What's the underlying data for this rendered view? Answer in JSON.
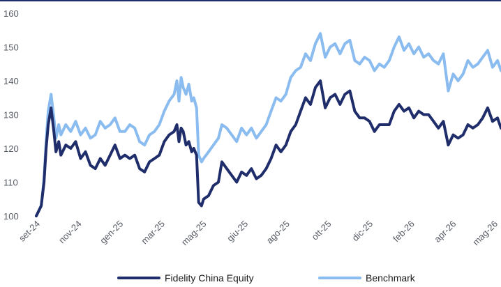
{
  "chart_data": {
    "type": "line",
    "title": "",
    "xlabel": "",
    "ylabel": "",
    "ylim": [
      100,
      160
    ],
    "y_ticks": [
      100,
      110,
      120,
      130,
      140,
      150,
      160
    ],
    "x_tick_labels": [
      "set-24",
      "nov-24",
      "gen-25",
      "mar-25",
      "mag-25",
      "giu-25",
      "ago-25",
      "ott-25",
      "dic-25",
      "feb-26",
      "apr-26",
      "mag-26"
    ],
    "grid": false,
    "legend_position": "bottom",
    "series": [
      {
        "name": "Fidelity China Equity",
        "color": "#1f2d6b",
        "points": [
          [
            "2024-09-13",
            100
          ],
          [
            "2024-09-20",
            103
          ],
          [
            "2024-09-24",
            110
          ],
          [
            "2024-09-27",
            120
          ],
          [
            "2024-09-30",
            127
          ],
          [
            "2024-10-04",
            132
          ],
          [
            "2024-10-08",
            125
          ],
          [
            "2024-10-11",
            119
          ],
          [
            "2024-10-15",
            122
          ],
          [
            "2024-10-18",
            118
          ],
          [
            "2024-10-25",
            121
          ],
          [
            "2024-11-01",
            120
          ],
          [
            "2024-11-08",
            122
          ],
          [
            "2024-11-15",
            117
          ],
          [
            "2024-11-22",
            119
          ],
          [
            "2024-11-29",
            115
          ],
          [
            "2024-12-06",
            114
          ],
          [
            "2024-12-13",
            117
          ],
          [
            "2024-12-20",
            115
          ],
          [
            "2024-12-27",
            118
          ],
          [
            "2025-01-03",
            121
          ],
          [
            "2025-01-10",
            117
          ],
          [
            "2025-01-17",
            118
          ],
          [
            "2025-01-24",
            117
          ],
          [
            "2025-01-31",
            118
          ],
          [
            "2025-02-07",
            114
          ],
          [
            "2025-02-14",
            113
          ],
          [
            "2025-02-21",
            116
          ],
          [
            "2025-02-28",
            117
          ],
          [
            "2025-03-07",
            118
          ],
          [
            "2025-03-14",
            122
          ],
          [
            "2025-03-21",
            124
          ],
          [
            "2025-03-28",
            125
          ],
          [
            "2025-04-01",
            127
          ],
          [
            "2025-04-04",
            122
          ],
          [
            "2025-04-07",
            126
          ],
          [
            "2025-04-10",
            125
          ],
          [
            "2025-04-14",
            121
          ],
          [
            "2025-04-18",
            122
          ],
          [
            "2025-04-22",
            119
          ],
          [
            "2025-04-25",
            120
          ],
          [
            "2025-04-29",
            118
          ],
          [
            "2025-05-02",
            104
          ],
          [
            "2025-05-06",
            103
          ],
          [
            "2025-05-09",
            105
          ],
          [
            "2025-05-16",
            106
          ],
          [
            "2025-05-23",
            109
          ],
          [
            "2025-05-30",
            110
          ],
          [
            "2025-06-04",
            116
          ],
          [
            "2025-06-11",
            114
          ],
          [
            "2025-06-18",
            112
          ],
          [
            "2025-06-25",
            110
          ],
          [
            "2025-07-02",
            113
          ],
          [
            "2025-07-09",
            112
          ],
          [
            "2025-07-16",
            114
          ],
          [
            "2025-07-23",
            111
          ],
          [
            "2025-07-30",
            112
          ],
          [
            "2025-08-06",
            114
          ],
          [
            "2025-08-13",
            117
          ],
          [
            "2025-08-20",
            121
          ],
          [
            "2025-08-27",
            119
          ],
          [
            "2025-09-03",
            121
          ],
          [
            "2025-09-10",
            125
          ],
          [
            "2025-09-17",
            127
          ],
          [
            "2025-09-24",
            131
          ],
          [
            "2025-10-01",
            135
          ],
          [
            "2025-10-08",
            133
          ],
          [
            "2025-10-15",
            138
          ],
          [
            "2025-10-22",
            140
          ],
          [
            "2025-10-29",
            132
          ],
          [
            "2025-11-05",
            135
          ],
          [
            "2025-11-12",
            136
          ],
          [
            "2025-11-19",
            133
          ],
          [
            "2025-11-26",
            136
          ],
          [
            "2025-12-03",
            137
          ],
          [
            "2025-12-10",
            131
          ],
          [
            "2025-12-17",
            129
          ],
          [
            "2025-12-24",
            129
          ],
          [
            "2025-12-31",
            128
          ],
          [
            "2026-01-07",
            125
          ],
          [
            "2026-01-14",
            127
          ],
          [
            "2026-01-21",
            127
          ],
          [
            "2026-01-28",
            127
          ],
          [
            "2026-02-04",
            131
          ],
          [
            "2026-02-11",
            133
          ],
          [
            "2026-02-18",
            131
          ],
          [
            "2026-02-25",
            132
          ],
          [
            "2026-03-04",
            129
          ],
          [
            "2026-03-11",
            131
          ],
          [
            "2026-03-18",
            130
          ],
          [
            "2026-03-25",
            130
          ],
          [
            "2026-04-01",
            128
          ],
          [
            "2026-04-08",
            126
          ],
          [
            "2026-04-15",
            128
          ],
          [
            "2026-04-22",
            121
          ],
          [
            "2026-04-29",
            124
          ],
          [
            "2026-05-06",
            123
          ],
          [
            "2026-05-13",
            124
          ],
          [
            "2026-05-20",
            127
          ],
          [
            "2026-05-27",
            126
          ],
          [
            "2026-06-03",
            127
          ],
          [
            "2026-06-10",
            129
          ],
          [
            "2026-06-17",
            132
          ],
          [
            "2026-06-24",
            128
          ],
          [
            "2026-07-01",
            129
          ],
          [
            "2026-07-06",
            126
          ]
        ]
      },
      {
        "name": "Benchmark",
        "color": "#8bbcf0",
        "points": [
          [
            "2024-09-13",
            100
          ],
          [
            "2024-09-20",
            103
          ],
          [
            "2024-09-24",
            111
          ],
          [
            "2024-09-27",
            122
          ],
          [
            "2024-09-30",
            131
          ],
          [
            "2024-10-04",
            136
          ],
          [
            "2024-10-08",
            129
          ],
          [
            "2024-10-11",
            123
          ],
          [
            "2024-10-15",
            127
          ],
          [
            "2024-10-18",
            124
          ],
          [
            "2024-10-25",
            127
          ],
          [
            "2024-11-01",
            125
          ],
          [
            "2024-11-08",
            128
          ],
          [
            "2024-11-15",
            124
          ],
          [
            "2024-11-22",
            126
          ],
          [
            "2024-11-29",
            123
          ],
          [
            "2024-12-06",
            124
          ],
          [
            "2024-12-13",
            128
          ],
          [
            "2024-12-20",
            126
          ],
          [
            "2024-12-27",
            127
          ],
          [
            "2025-01-03",
            129
          ],
          [
            "2025-01-10",
            125
          ],
          [
            "2025-01-17",
            125
          ],
          [
            "2025-01-24",
            127
          ],
          [
            "2025-01-31",
            126
          ],
          [
            "2025-02-07",
            122
          ],
          [
            "2025-02-14",
            121
          ],
          [
            "2025-02-21",
            124
          ],
          [
            "2025-02-28",
            125
          ],
          [
            "2025-03-07",
            127
          ],
          [
            "2025-03-14",
            131
          ],
          [
            "2025-03-21",
            134
          ],
          [
            "2025-03-28",
            136
          ],
          [
            "2025-04-01",
            140
          ],
          [
            "2025-04-04",
            134
          ],
          [
            "2025-04-07",
            141
          ],
          [
            "2025-04-10",
            138
          ],
          [
            "2025-04-14",
            136
          ],
          [
            "2025-04-18",
            139
          ],
          [
            "2025-04-22",
            134
          ],
          [
            "2025-04-25",
            135
          ],
          [
            "2025-04-29",
            132
          ],
          [
            "2025-05-02",
            118
          ],
          [
            "2025-05-06",
            116
          ],
          [
            "2025-05-09",
            117
          ],
          [
            "2025-05-16",
            119
          ],
          [
            "2025-05-23",
            121
          ],
          [
            "2025-05-30",
            123
          ],
          [
            "2025-06-04",
            127
          ],
          [
            "2025-06-11",
            126
          ],
          [
            "2025-06-18",
            124
          ],
          [
            "2025-06-25",
            122
          ],
          [
            "2025-07-02",
            126
          ],
          [
            "2025-07-09",
            124
          ],
          [
            "2025-07-16",
            126
          ],
          [
            "2025-07-23",
            123
          ],
          [
            "2025-07-30",
            125
          ],
          [
            "2025-08-06",
            127
          ],
          [
            "2025-08-13",
            131
          ],
          [
            "2025-08-20",
            135
          ],
          [
            "2025-08-27",
            134
          ],
          [
            "2025-09-03",
            136
          ],
          [
            "2025-09-10",
            141
          ],
          [
            "2025-09-17",
            143
          ],
          [
            "2025-09-24",
            144
          ],
          [
            "2025-10-01",
            148
          ],
          [
            "2025-10-08",
            146
          ],
          [
            "2025-10-15",
            151
          ],
          [
            "2025-10-22",
            154
          ],
          [
            "2025-10-29",
            147
          ],
          [
            "2025-11-05",
            150
          ],
          [
            "2025-11-12",
            151
          ],
          [
            "2025-11-19",
            148
          ],
          [
            "2025-11-26",
            151
          ],
          [
            "2025-12-03",
            152
          ],
          [
            "2025-12-10",
            146
          ],
          [
            "2025-12-17",
            145
          ],
          [
            "2025-12-24",
            147
          ],
          [
            "2025-12-31",
            146
          ],
          [
            "2026-01-07",
            143
          ],
          [
            "2026-01-14",
            145
          ],
          [
            "2026-01-21",
            144
          ],
          [
            "2026-01-28",
            146
          ],
          [
            "2026-02-04",
            150
          ],
          [
            "2026-02-11",
            153
          ],
          [
            "2026-02-18",
            149
          ],
          [
            "2026-02-25",
            151
          ],
          [
            "2026-03-04",
            148
          ],
          [
            "2026-03-11",
            150
          ],
          [
            "2026-03-18",
            147
          ],
          [
            "2026-03-25",
            148
          ],
          [
            "2026-04-01",
            146
          ],
          [
            "2026-04-08",
            145
          ],
          [
            "2026-04-15",
            148
          ],
          [
            "2026-04-22",
            137
          ],
          [
            "2026-04-29",
            142
          ],
          [
            "2026-05-06",
            140
          ],
          [
            "2026-05-13",
            142
          ],
          [
            "2026-05-20",
            146
          ],
          [
            "2026-05-27",
            144
          ],
          [
            "2026-06-03",
            145
          ],
          [
            "2026-06-10",
            147
          ],
          [
            "2026-06-17",
            149
          ],
          [
            "2026-06-24",
            144
          ],
          [
            "2026-07-01",
            146
          ],
          [
            "2026-07-06",
            143
          ]
        ]
      }
    ]
  }
}
